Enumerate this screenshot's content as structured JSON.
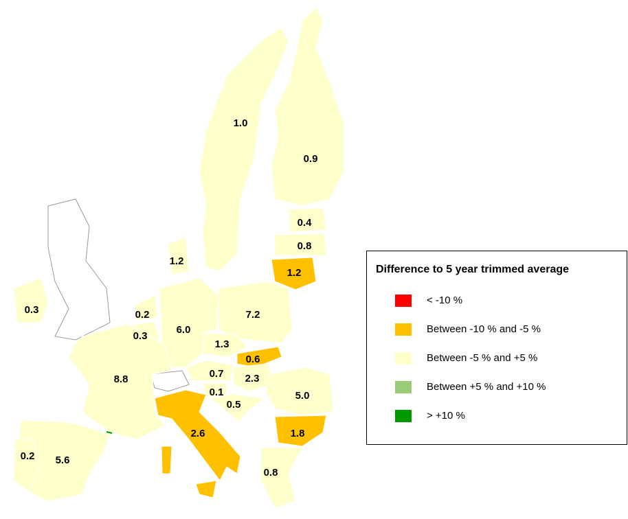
{
  "legend": {
    "title": "Difference to 5 year trimmed average",
    "items": [
      {
        "label": "< -10 %",
        "color": "#ff0000"
      },
      {
        "label": "Between -10 % and -5 %",
        "color": "#ffc000"
      },
      {
        "label": "Between -5 % and +5 %",
        "color": "#ffffcc"
      },
      {
        "label": "Between +5 % and +10 %",
        "color": "#99cc77"
      },
      {
        "label": "> +10 %",
        "color": "#009900"
      }
    ]
  },
  "regions": [
    {
      "value": "1.0",
      "class": 2
    },
    {
      "value": "0.9",
      "class": 2
    },
    {
      "value": "0.4",
      "class": 2
    },
    {
      "value": "0.8",
      "class": 2
    },
    {
      "value": "1.2",
      "class": 1
    },
    {
      "value": "1.2",
      "class": 2
    },
    {
      "value": "0.3",
      "class": 2
    },
    {
      "value": "0.2",
      "class": 2
    },
    {
      "value": "0.3",
      "class": 2
    },
    {
      "value": "6.0",
      "class": 2
    },
    {
      "value": "7.2",
      "class": 2
    },
    {
      "value": "1.3",
      "class": 2
    },
    {
      "value": "0.6",
      "class": 1
    },
    {
      "value": "0.7",
      "class": 2
    },
    {
      "value": "2.3",
      "class": 2
    },
    {
      "value": "0.1",
      "class": 2
    },
    {
      "value": "0.5",
      "class": 2
    },
    {
      "value": "8.8",
      "class": 2
    },
    {
      "value": "5.0",
      "class": 2
    },
    {
      "value": "1.8",
      "class": 1
    },
    {
      "value": "2.6",
      "class": 1
    },
    {
      "value": "0.2",
      "class": 2
    },
    {
      "value": "5.6",
      "class": 2
    },
    {
      "value": "0.8",
      "class": 2
    }
  ]
}
